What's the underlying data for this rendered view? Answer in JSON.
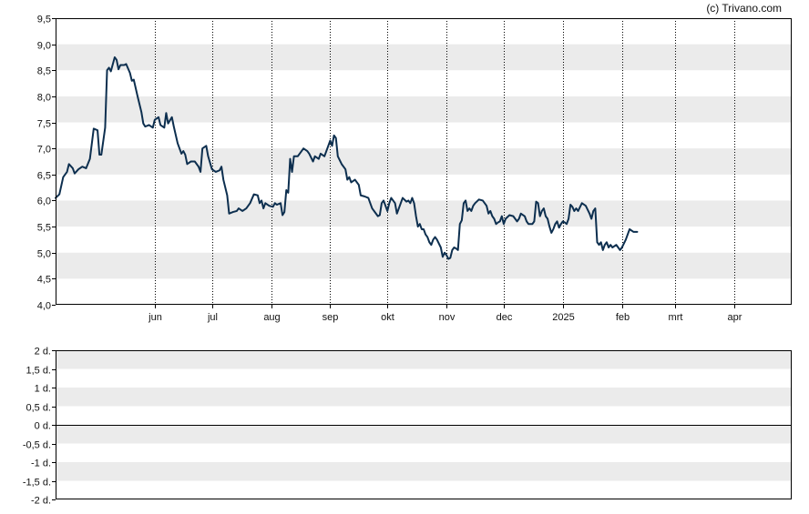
{
  "copyright": "(c) Trivano.com",
  "colors": {
    "line": "#0d2f4f",
    "band": "#ebebeb",
    "grid": "#000000",
    "frame": "#000000"
  },
  "chart_data": [
    {
      "type": "line",
      "title": "",
      "xlabel": "",
      "ylabel": "",
      "ylim": [
        4.0,
        9.5
      ],
      "y_ticks": [
        "4,0",
        "4,5",
        "5,0",
        "5,5",
        "6,0",
        "6,5",
        "7,0",
        "7,5",
        "8,0",
        "8,5",
        "9,0",
        "9,5"
      ],
      "x_ticks": [
        {
          "label": "jun",
          "day": 52
        },
        {
          "label": "jul",
          "day": 82
        },
        {
          "label": "aug",
          "day": 113
        },
        {
          "label": "sep",
          "day": 144
        },
        {
          "label": "okt",
          "day": 174
        },
        {
          "label": "nov",
          "day": 205
        },
        {
          "label": "dec",
          "day": 235
        },
        {
          "label": "2025",
          "day": 266
        },
        {
          "label": "feb",
          "day": 297
        },
        {
          "label": "mrt",
          "day": 325
        },
        {
          "label": "apr",
          "day": 356
        }
      ],
      "x_range_days": [
        0,
        386
      ],
      "grid": "vertical dotted at month ticks, alternating horizontal bands",
      "legend": "none",
      "series": [
        {
          "name": "",
          "points": [
            [
              0,
              6.05
            ],
            [
              2,
              6.12
            ],
            [
              4,
              6.45
            ],
            [
              6,
              6.55
            ],
            [
              7,
              6.7
            ],
            [
              9,
              6.62
            ],
            [
              10,
              6.52
            ],
            [
              12,
              6.6
            ],
            [
              14,
              6.65
            ],
            [
              16,
              6.62
            ],
            [
              18,
              6.8
            ],
            [
              20,
              7.38
            ],
            [
              22,
              7.35
            ],
            [
              23,
              6.88
            ],
            [
              24,
              6.88
            ],
            [
              26,
              7.4
            ],
            [
              27,
              8.5
            ],
            [
              28,
              8.55
            ],
            [
              29,
              8.48
            ],
            [
              31,
              8.75
            ],
            [
              32,
              8.7
            ],
            [
              33,
              8.52
            ],
            [
              34,
              8.6
            ],
            [
              36,
              8.6
            ],
            [
              37,
              8.62
            ],
            [
              39,
              8.45
            ],
            [
              40,
              8.3
            ],
            [
              41,
              8.32
            ],
            [
              43,
              8.0
            ],
            [
              45,
              7.7
            ],
            [
              46,
              7.48
            ],
            [
              47,
              7.42
            ],
            [
              49,
              7.45
            ],
            [
              51,
              7.4
            ],
            [
              52,
              7.55
            ],
            [
              54,
              7.6
            ],
            [
              55,
              7.45
            ],
            [
              57,
              7.4
            ],
            [
              58,
              7.68
            ],
            [
              59,
              7.48
            ],
            [
              61,
              7.6
            ],
            [
              62,
              7.42
            ],
            [
              64,
              7.1
            ],
            [
              66,
              6.9
            ],
            [
              67,
              6.95
            ],
            [
              68,
              6.88
            ],
            [
              69,
              6.7
            ],
            [
              71,
              6.75
            ],
            [
              73,
              6.75
            ],
            [
              75,
              6.65
            ],
            [
              76,
              6.55
            ],
            [
              77,
              7.0
            ],
            [
              79,
              7.05
            ],
            [
              80,
              6.85
            ],
            [
              82,
              6.6
            ],
            [
              84,
              6.55
            ],
            [
              86,
              6.58
            ],
            [
              87,
              6.65
            ],
            [
              88,
              6.4
            ],
            [
              90,
              6.1
            ],
            [
              91,
              5.75
            ],
            [
              93,
              5.78
            ],
            [
              95,
              5.8
            ],
            [
              96,
              5.85
            ],
            [
              98,
              5.8
            ],
            [
              100,
              5.85
            ],
            [
              102,
              5.95
            ],
            [
              104,
              6.12
            ],
            [
              106,
              6.1
            ],
            [
              107,
              5.95
            ],
            [
              108,
              6.0
            ],
            [
              109,
              5.85
            ],
            [
              110,
              5.95
            ],
            [
              112,
              5.9
            ],
            [
              114,
              5.88
            ],
            [
              115,
              5.95
            ],
            [
              116,
              5.92
            ],
            [
              118,
              5.95
            ],
            [
              119,
              5.72
            ],
            [
              120,
              5.78
            ],
            [
              121,
              6.2
            ],
            [
              122,
              6.15
            ],
            [
              123,
              6.8
            ],
            [
              124,
              6.55
            ],
            [
              125,
              6.85
            ],
            [
              127,
              6.85
            ],
            [
              128,
              6.9
            ],
            [
              130,
              7.0
            ],
            [
              132,
              6.95
            ],
            [
              133,
              6.9
            ],
            [
              135,
              6.75
            ],
            [
              136,
              6.85
            ],
            [
              138,
              6.8
            ],
            [
              139,
              6.9
            ],
            [
              141,
              6.85
            ],
            [
              142,
              6.95
            ],
            [
              143,
              7.05
            ],
            [
              144,
              7.15
            ],
            [
              145,
              7.05
            ],
            [
              146,
              7.25
            ],
            [
              147,
              7.2
            ],
            [
              148,
              6.85
            ],
            [
              150,
              6.7
            ],
            [
              152,
              6.6
            ],
            [
              153,
              6.4
            ],
            [
              154,
              6.45
            ],
            [
              155,
              6.35
            ],
            [
              157,
              6.4
            ],
            [
              159,
              6.3
            ],
            [
              160,
              6.1
            ],
            [
              162,
              6.08
            ],
            [
              164,
              6.05
            ],
            [
              165,
              5.95
            ],
            [
              166,
              5.85
            ],
            [
              168,
              5.75
            ],
            [
              169,
              5.7
            ],
            [
              170,
              5.72
            ],
            [
              171,
              5.95
            ],
            [
              172,
              6.0
            ],
            [
              173,
              5.9
            ],
            [
              174,
              5.8
            ],
            [
              175,
              5.95
            ],
            [
              176,
              6.05
            ],
            [
              177,
              6.0
            ],
            [
              178,
              5.95
            ],
            [
              179,
              5.75
            ],
            [
              180,
              5.85
            ],
            [
              182,
              6.05
            ],
            [
              184,
              5.98
            ],
            [
              185,
              6.0
            ],
            [
              186,
              5.95
            ],
            [
              187,
              6.05
            ],
            [
              188,
              5.95
            ],
            [
              189,
              5.7
            ],
            [
              190,
              5.5
            ],
            [
              191,
              5.55
            ],
            [
              192,
              5.45
            ],
            [
              193,
              5.45
            ],
            [
              194,
              5.35
            ],
            [
              195,
              5.3
            ],
            [
              196,
              5.2
            ],
            [
              197,
              5.15
            ],
            [
              198,
              5.25
            ],
            [
              199,
              5.3
            ],
            [
              200,
              5.25
            ],
            [
              202,
              5.1
            ],
            [
              203,
              4.92
            ],
            [
              204,
              5.0
            ],
            [
              205,
              4.95
            ],
            [
              206,
              4.88
            ],
            [
              207,
              4.9
            ],
            [
              208,
              5.05
            ],
            [
              209,
              5.1
            ],
            [
              210,
              5.08
            ],
            [
              211,
              5.05
            ],
            [
              212,
              5.55
            ],
            [
              213,
              5.62
            ],
            [
              214,
              5.95
            ],
            [
              215,
              6.0
            ],
            [
              216,
              5.8
            ],
            [
              217,
              5.85
            ],
            [
              218,
              5.8
            ],
            [
              219,
              5.9
            ],
            [
              220,
              5.95
            ],
            [
              222,
              6.02
            ],
            [
              224,
              6.0
            ],
            [
              226,
              5.9
            ],
            [
              227,
              5.75
            ],
            [
              228,
              5.8
            ],
            [
              229,
              5.7
            ],
            [
              230,
              5.65
            ],
            [
              231,
              5.55
            ],
            [
              232,
              5.58
            ],
            [
              233,
              5.6
            ],
            [
              234,
              5.7
            ],
            [
              235,
              5.55
            ],
            [
              236,
              5.65
            ],
            [
              238,
              5.72
            ],
            [
              240,
              5.7
            ],
            [
              242,
              5.6
            ],
            [
              243,
              5.65
            ],
            [
              244,
              5.75
            ],
            [
              246,
              5.7
            ],
            [
              247,
              5.6
            ],
            [
              248,
              5.55
            ],
            [
              250,
              5.55
            ],
            [
              251,
              5.6
            ],
            [
              252,
              5.98
            ],
            [
              253,
              5.95
            ],
            [
              254,
              5.7
            ],
            [
              255,
              5.8
            ],
            [
              256,
              5.85
            ],
            [
              257,
              5.7
            ],
            [
              258,
              5.65
            ],
            [
              259,
              5.5
            ],
            [
              260,
              5.38
            ],
            [
              261,
              5.45
            ],
            [
              262,
              5.55
            ],
            [
              263,
              5.6
            ],
            [
              264,
              5.48
            ],
            [
              265,
              5.55
            ],
            [
              266,
              5.6
            ],
            [
              267,
              5.58
            ],
            [
              268,
              5.55
            ],
            [
              269,
              5.65
            ],
            [
              270,
              5.92
            ],
            [
              271,
              5.88
            ],
            [
              272,
              5.8
            ],
            [
              273,
              5.85
            ],
            [
              274,
              5.8
            ],
            [
              276,
              5.95
            ],
            [
              278,
              5.9
            ],
            [
              280,
              5.75
            ],
            [
              281,
              5.65
            ],
            [
              282,
              5.8
            ],
            [
              283,
              5.85
            ],
            [
              284,
              5.2
            ],
            [
              285,
              5.15
            ],
            [
              286,
              5.2
            ],
            [
              287,
              5.05
            ],
            [
              288,
              5.15
            ],
            [
              289,
              5.2
            ],
            [
              290,
              5.1
            ],
            [
              291,
              5.15
            ],
            [
              292,
              5.1
            ],
            [
              294,
              5.15
            ],
            [
              296,
              5.05
            ],
            [
              297,
              5.1
            ],
            [
              299,
              5.25
            ],
            [
              301,
              5.45
            ],
            [
              303,
              5.4
            ],
            [
              305,
              5.4
            ]
          ]
        }
      ]
    },
    {
      "type": "line",
      "title": "",
      "xlabel": "",
      "ylabel": "",
      "ylim": [
        -2,
        2
      ],
      "y_ticks": [
        "-2 d.",
        "-1,5 d.",
        "-1 d.",
        "-0,5 d.",
        "0 d.",
        "0,5 d.",
        "1 d.",
        "1,5 d.",
        "2 d."
      ],
      "zero_line": 0,
      "grid": "alternating horizontal bands",
      "legend": "none",
      "series": []
    }
  ]
}
